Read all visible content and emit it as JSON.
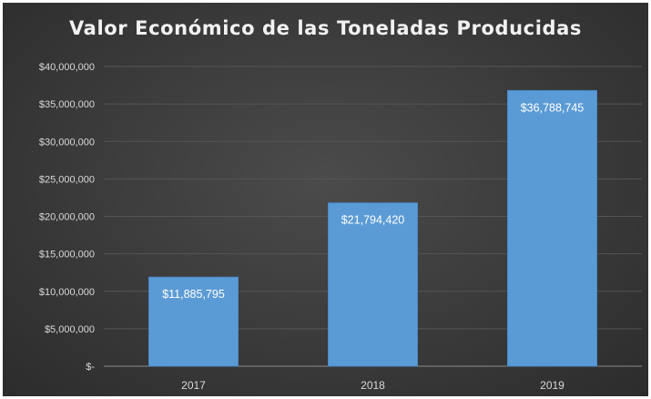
{
  "chart_data": {
    "type": "bar",
    "title": "Valor Económico de las Toneladas Producidas",
    "categories": [
      "2017",
      "2018",
      "2019"
    ],
    "values": [
      11885795,
      21794420,
      36788745
    ],
    "data_labels": [
      "$11,885,795",
      "$21,794,420",
      "$36,788,745"
    ],
    "ylim": [
      0,
      40000000
    ],
    "yticks": [
      0,
      5000000,
      10000000,
      15000000,
      20000000,
      25000000,
      30000000,
      35000000,
      40000000
    ],
    "ytick_labels": [
      "$-",
      "$5,000,000",
      "$10,000,000",
      "$15,000,000",
      "$20,000,000",
      "$25,000,000",
      "$30,000,000",
      "$35,000,000",
      "$40,000,000"
    ],
    "grid": true,
    "legend": "none",
    "colors": {
      "background": "#3a3a3a",
      "bar": "#5b9bd5",
      "bar_edge": "#4a88c6",
      "gridline": "#555555",
      "text": "#d9d9d9"
    }
  }
}
